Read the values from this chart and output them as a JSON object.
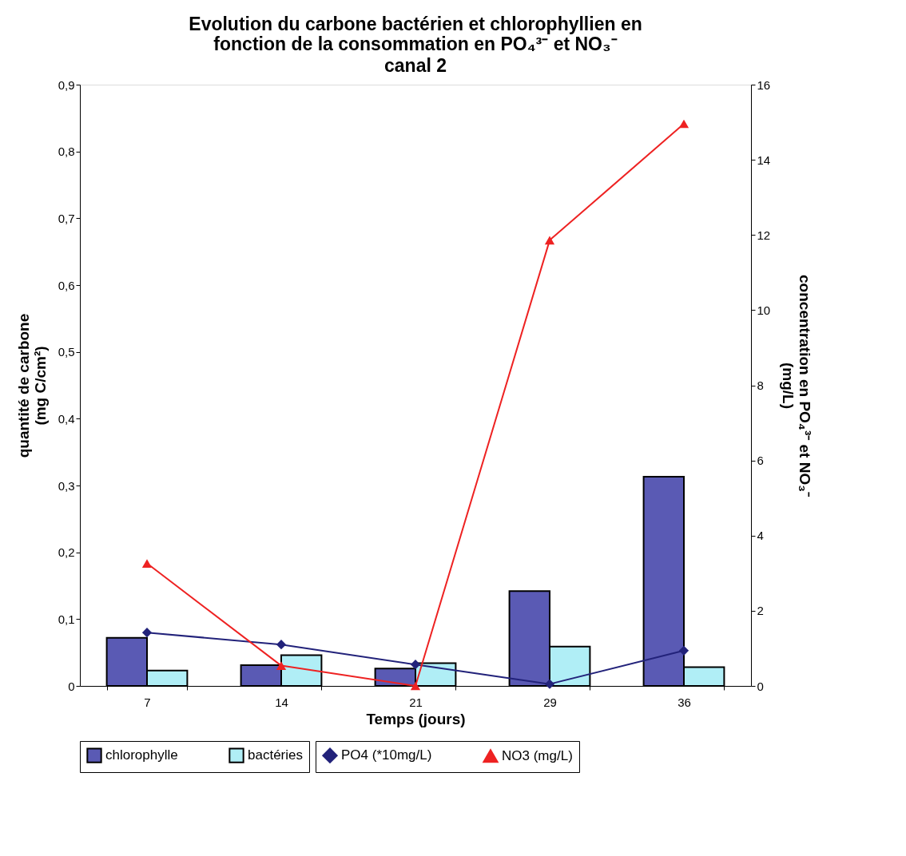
{
  "chart_data": {
    "type": "bar",
    "title": "Evolution du carbone bactérien et chlorophyllien en fonction de la consommation en PO₄³⁻ et NO₃⁻",
    "subtitle": "canal 2",
    "xlabel": "Temps (jours)",
    "ylabel": "quantité de carbone (mg C/cm²)",
    "y2label": "concentration en PO₄³⁻ et NO₃⁻ (mg/L)",
    "categories": [
      "7",
      "14",
      "21",
      "29",
      "36"
    ],
    "series": [
      {
        "name": "chlorophylle",
        "color": "#5a5ab4",
        "values": [
          0.072,
          0.031,
          0.026,
          0.142,
          0.313
        ]
      },
      {
        "name": "bactéries",
        "color": "#b0eef6",
        "values": [
          0.023,
          0.046,
          0.034,
          0.059,
          0.028
        ]
      },
      {
        "name": "PO4 (*10mg/L)",
        "type": "line",
        "axis": "y2",
        "marker": "diamond",
        "color": "#22227a",
        "values": [
          1.42,
          1.1,
          0.57,
          0.05,
          0.94
        ]
      },
      {
        "name": "NO3 (mg/L)",
        "type": "line",
        "axis": "y2",
        "marker": "triangle",
        "color": "#ee2222",
        "values": [
          3.26,
          0.54,
          0.0,
          11.86,
          14.96
        ]
      }
    ],
    "ylim": [
      0,
      0.9
    ],
    "yticks": [
      {
        "value": 0,
        "label": "0"
      },
      {
        "value": 0.1,
        "label": "0,1"
      },
      {
        "value": 0.2,
        "label": "0,2"
      },
      {
        "value": 0.3,
        "label": "0,3"
      },
      {
        "value": 0.4,
        "label": "0,4"
      },
      {
        "value": 0.5,
        "label": "0,5"
      },
      {
        "value": 0.6,
        "label": "0,6"
      },
      {
        "value": 0.7,
        "label": "0,7"
      },
      {
        "value": 0.8,
        "label": "0,8"
      },
      {
        "value": 0.9,
        "label": "0,9"
      }
    ],
    "y2lim": [
      0,
      16
    ],
    "y2ticks": [
      0,
      2,
      4,
      6,
      8,
      10,
      12,
      14,
      16
    ],
    "grid": false,
    "legend": "bottom"
  }
}
